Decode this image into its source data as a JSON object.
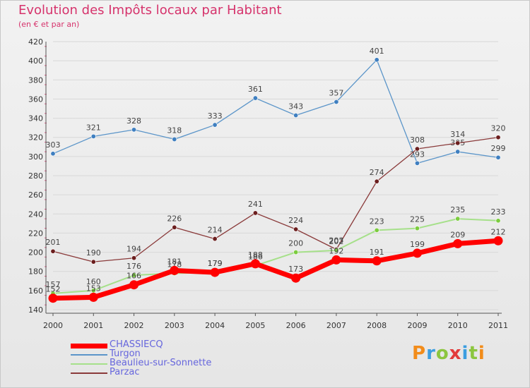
{
  "header": {
    "title": "Evolution des Impôts locaux par Habitant",
    "subtitle": "(en € et par an)"
  },
  "logo": {
    "text": "Proxiti",
    "colors": [
      "#f28c1a",
      "#3c9ee0",
      "#8cc63f",
      "#e23a3a",
      "#3c9ee0",
      "#8cc63f",
      "#f28c1a"
    ]
  },
  "chart_data": {
    "type": "line",
    "title": "Evolution des Impôts locaux par Habitant",
    "subtitle": "(en € et par an)",
    "xlabel": "",
    "ylabel": "",
    "ylim": [
      140,
      420
    ],
    "yticks": [
      140,
      160,
      180,
      200,
      220,
      240,
      260,
      280,
      300,
      320,
      340,
      360,
      380,
      400,
      420
    ],
    "categories": [
      "2000",
      "2001",
      "2002",
      "2003",
      "2004",
      "2005",
      "2006",
      "2007",
      "2008",
      "2009",
      "2010",
      "2011"
    ],
    "legend_position": "bottom-left",
    "series": [
      {
        "name": "Turgon",
        "color": "#5b95c9",
        "point": "#3f7fc0",
        "width": 1.3,
        "values": [
          303,
          321,
          328,
          318,
          333,
          361,
          343,
          357,
          401,
          293,
          305,
          299
        ]
      },
      {
        "name": "Parzac",
        "color": "#8a3a3a",
        "point": "#6b1e1e",
        "width": 1.3,
        "values": [
          201,
          190,
          194,
          226,
          214,
          241,
          224,
          203,
          274,
          308,
          314,
          320
        ]
      },
      {
        "name": "Beaulieu-sur-Sonnette",
        "color": "#a6e08a",
        "point": "#7ccc3f",
        "width": 2,
        "values": [
          157,
          160,
          176,
          178,
          179,
          186,
          200,
          202,
          223,
          225,
          235,
          233
        ]
      },
      {
        "name": "CHASSIECQ",
        "color": "#ff0000",
        "point": "#ff0000",
        "width": 7,
        "values": [
          152,
          153,
          166,
          181,
          179,
          188,
          173,
          192,
          191,
          199,
          209,
          212
        ]
      }
    ]
  }
}
